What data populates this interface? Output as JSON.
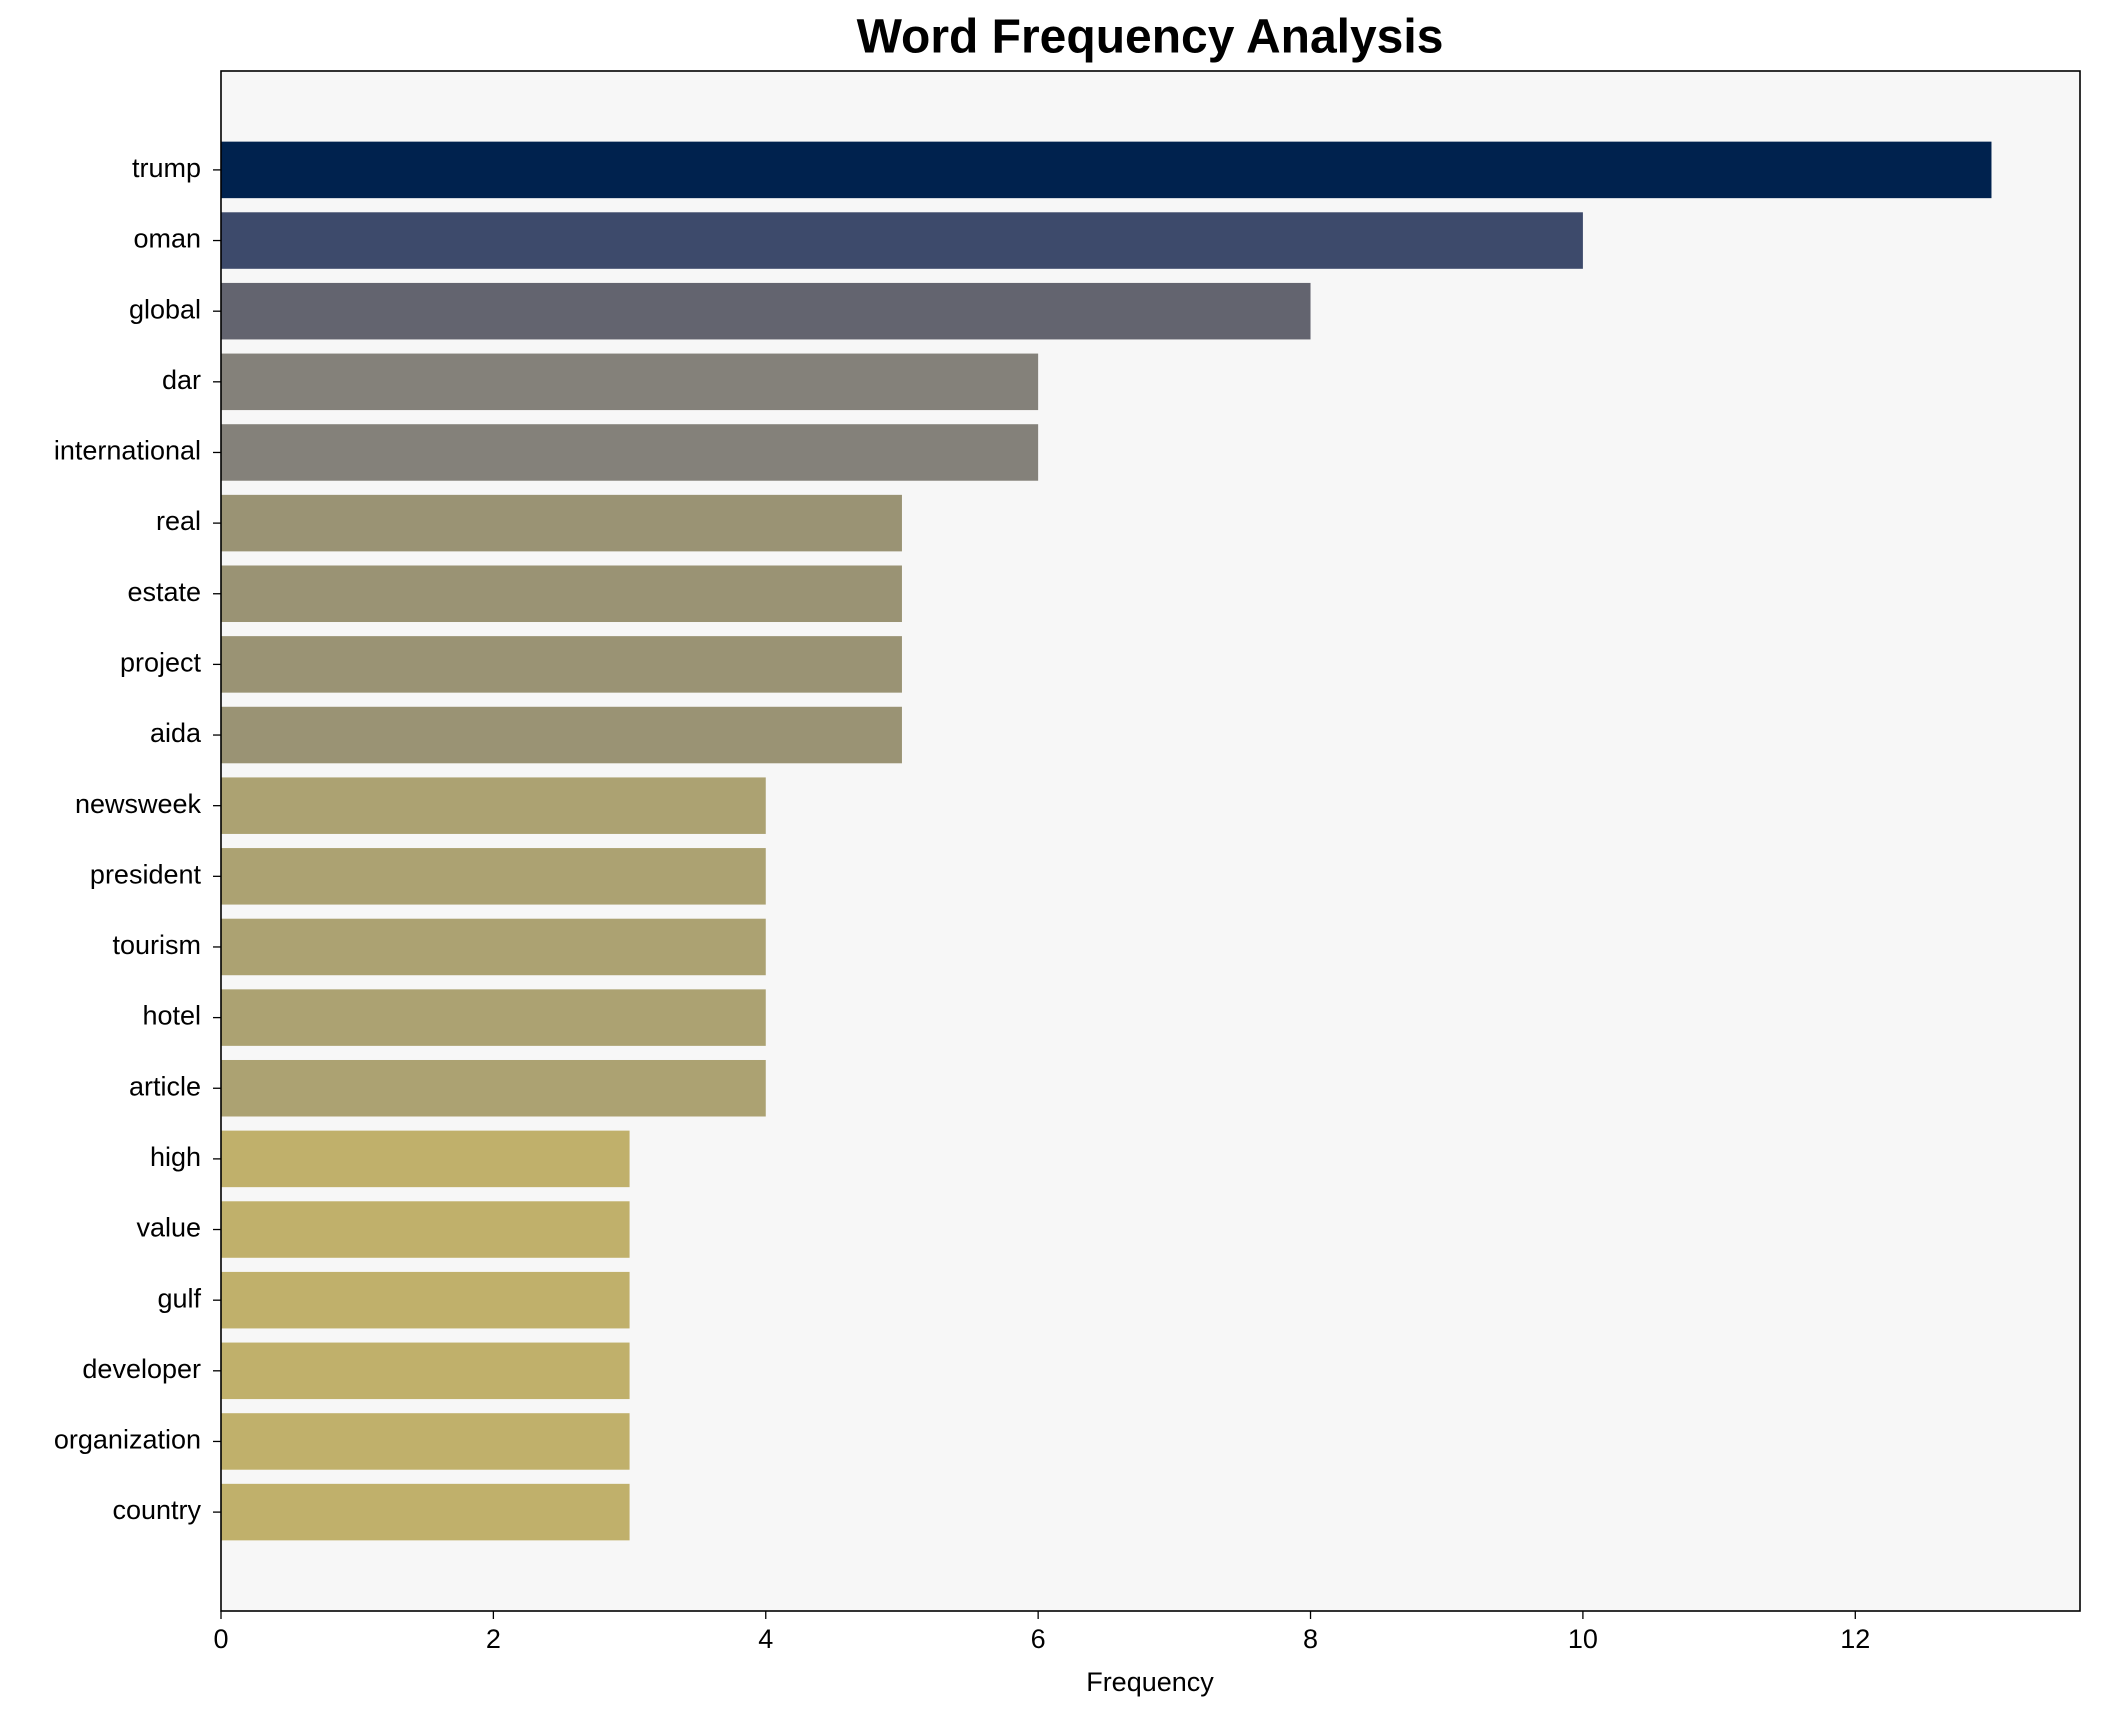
{
  "chart_data": {
    "type": "barh",
    "title": "Word Frequency Analysis",
    "x_label": "Frequency",
    "categories": [
      "trump",
      "oman",
      "global",
      "dar",
      "international",
      "real",
      "estate",
      "project",
      "aida",
      "newsweek",
      "president",
      "tourism",
      "hotel",
      "article",
      "high",
      "value",
      "gulf",
      "developer",
      "organization",
      "country"
    ],
    "values": [
      13,
      10,
      8,
      6,
      6,
      5,
      5,
      5,
      5,
      4,
      4,
      4,
      4,
      4,
      3,
      3,
      3,
      3,
      3,
      3
    ],
    "colors": [
      "#00224e",
      "#3d4a6b",
      "#63646f",
      "#84817a",
      "#84817a",
      "#9a9374",
      "#9a9374",
      "#9a9374",
      "#9a9374",
      "#aca272",
      "#aca272",
      "#aca272",
      "#aca272",
      "#aca272",
      "#c0b06b",
      "#c0b06b",
      "#c0b06b",
      "#c0b06b",
      "#c0b06b",
      "#c0b06b"
    ],
    "xlim": [
      0,
      13.65
    ],
    "xticks": [
      0,
      2,
      4,
      6,
      8,
      10,
      12
    ]
  }
}
